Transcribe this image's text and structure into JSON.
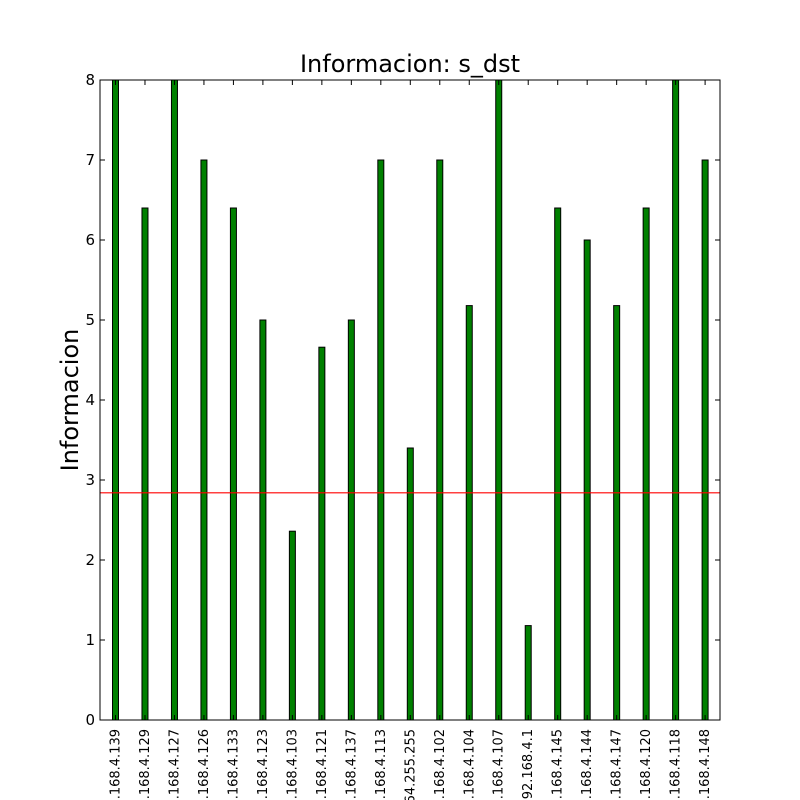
{
  "chart_data": {
    "type": "bar",
    "title": "Informacion: s_dst",
    "xlabel": "",
    "ylabel": "Informacion",
    "ylim": [
      0,
      8
    ],
    "yticks": [
      "0",
      "1",
      "2",
      "3",
      "4",
      "5",
      "6",
      "7",
      "8"
    ],
    "categories": [
      ".168.4.139",
      ".168.4.129",
      ".168.4.127",
      ".168.4.126",
      ".168.4.133",
      ".168.4.123",
      ".168.4.103",
      ".168.4.121",
      ".168.4.137",
      ".168.4.113",
      "64.255.255",
      ".168.4.102",
      ".168.4.104",
      ".168.4.107",
      "92.168.4.1",
      ".168.4.145",
      ".168.4.144",
      ".168.4.147",
      ".168.4.120",
      ".168.4.118",
      ".168.4.148"
    ],
    "values": [
      8.0,
      6.4,
      8.0,
      7.0,
      6.4,
      5.0,
      2.36,
      4.66,
      5.0,
      7.0,
      3.4,
      7.0,
      5.18,
      8.0,
      1.18,
      6.4,
      6.0,
      5.18,
      6.4,
      8.0,
      7.0
    ],
    "reference_line": {
      "value": 2.84,
      "color": "#ff0000"
    },
    "bar_color": "#008000",
    "grid": false,
    "legend": "none"
  }
}
